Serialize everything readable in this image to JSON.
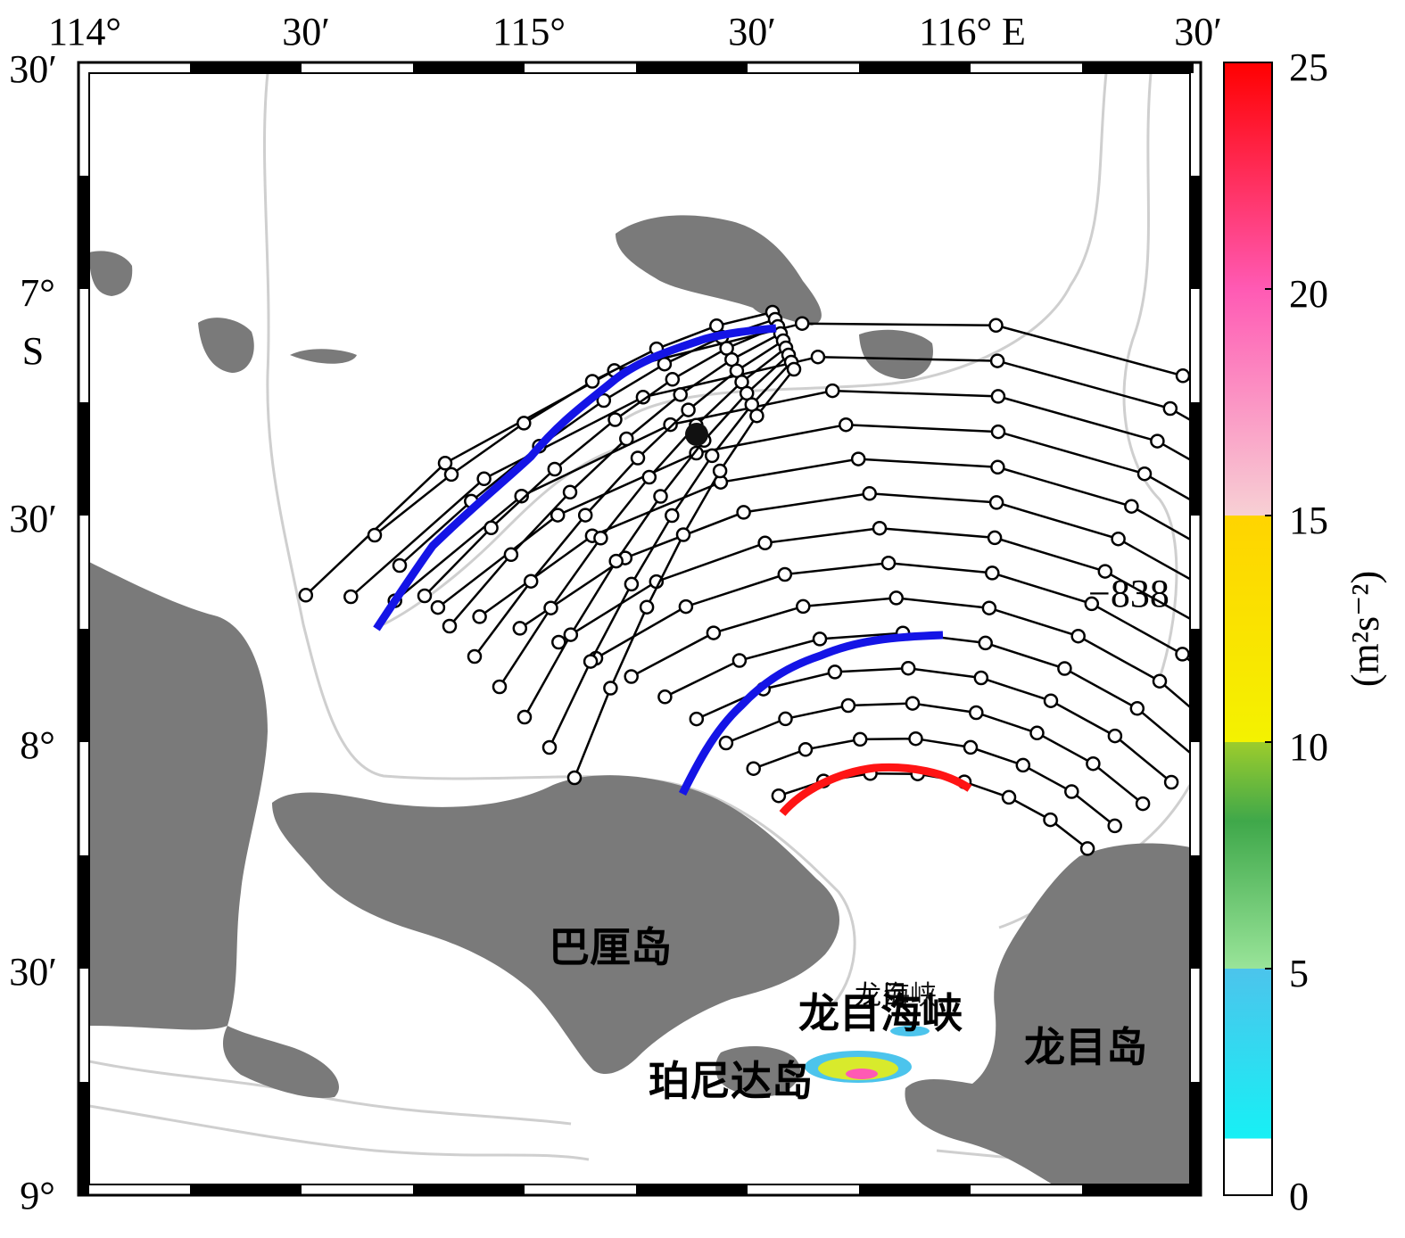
{
  "map": {
    "top_lon_labels": [
      "114°",
      "30′",
      "115°",
      "30′",
      "116° E",
      "30′"
    ],
    "left_lat_labels": [
      "30′",
      "7°",
      "S",
      "30′",
      "8°",
      "30′",
      "9°"
    ],
    "contour_label": "−838",
    "places": {
      "bali": "巴厘岛",
      "lombok_strait": "龙目海峡",
      "lombok_strait_small": "龙目",
      "lombok_strait_small2": "海峡",
      "nusa_penida": "珀尼达岛",
      "lombok_island": "龙目岛"
    },
    "colors": {
      "land": "#7a7a7a",
      "contour": "#c8c8c8",
      "track": "#000000",
      "highlight_blue": "#1414e6",
      "highlight_red": "#ff1414"
    }
  },
  "colorbar": {
    "ticks": [
      "25",
      "20",
      "15",
      "10",
      "5",
      "0"
    ],
    "unit_label": "(m²s⁻²)"
  }
}
